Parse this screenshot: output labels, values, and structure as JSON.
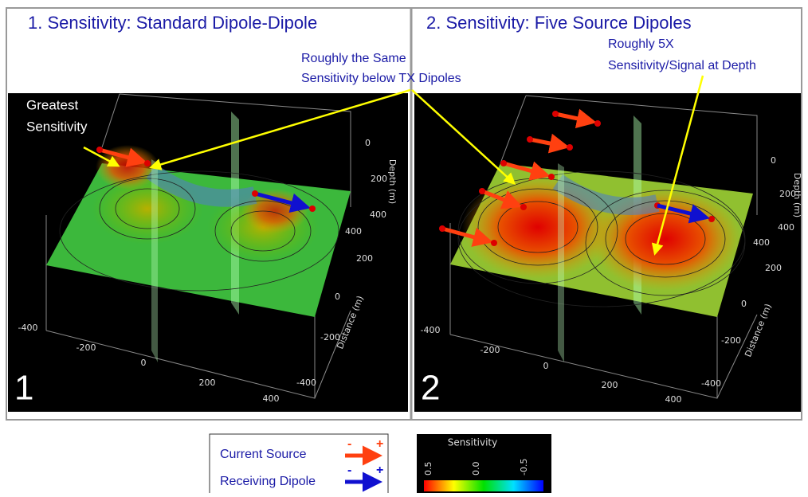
{
  "panels": [
    {
      "title": "1. Sensitivity: Standard Dipole-Dipole",
      "number": "1",
      "depth_label": "Depth (m)",
      "depth_ticks": [
        "0",
        "200",
        "400"
      ],
      "distance_label": "Distance (m)",
      "distance_ticks": [
        "400",
        "200",
        "0",
        "-200",
        "-400"
      ],
      "x_ticks": [
        "-400",
        "-200",
        "0",
        "200",
        "400"
      ],
      "annotation": [
        "Greatest",
        "Sensitivity"
      ]
    },
    {
      "title": "2. Sensitivity: Five Source Dipoles",
      "number": "2",
      "depth_label": "Depth (m)",
      "depth_ticks": [
        "0",
        "200",
        "400"
      ],
      "distance_label": "Distance (m)",
      "distance_ticks": [
        "400",
        "200",
        "0",
        "-200",
        "-400"
      ],
      "x_ticks": [
        "-400",
        "-200",
        "0",
        "200",
        "400"
      ],
      "annotation": [
        "Roughly 5X",
        "Sensitivity/Signal at Depth"
      ]
    }
  ],
  "shared_annotation": [
    "Roughly the Same",
    "Sensitivity below TX Dipoles"
  ],
  "legend": {
    "items": [
      {
        "label": "Current Source",
        "minus": "-",
        "plus": "+"
      },
      {
        "label": "Receiving Dipole",
        "minus": "-",
        "plus": "+"
      }
    ]
  },
  "colorbar": {
    "title": "Sensitivity",
    "ticks": [
      "0.5",
      "0.0",
      "-0.5"
    ]
  }
}
